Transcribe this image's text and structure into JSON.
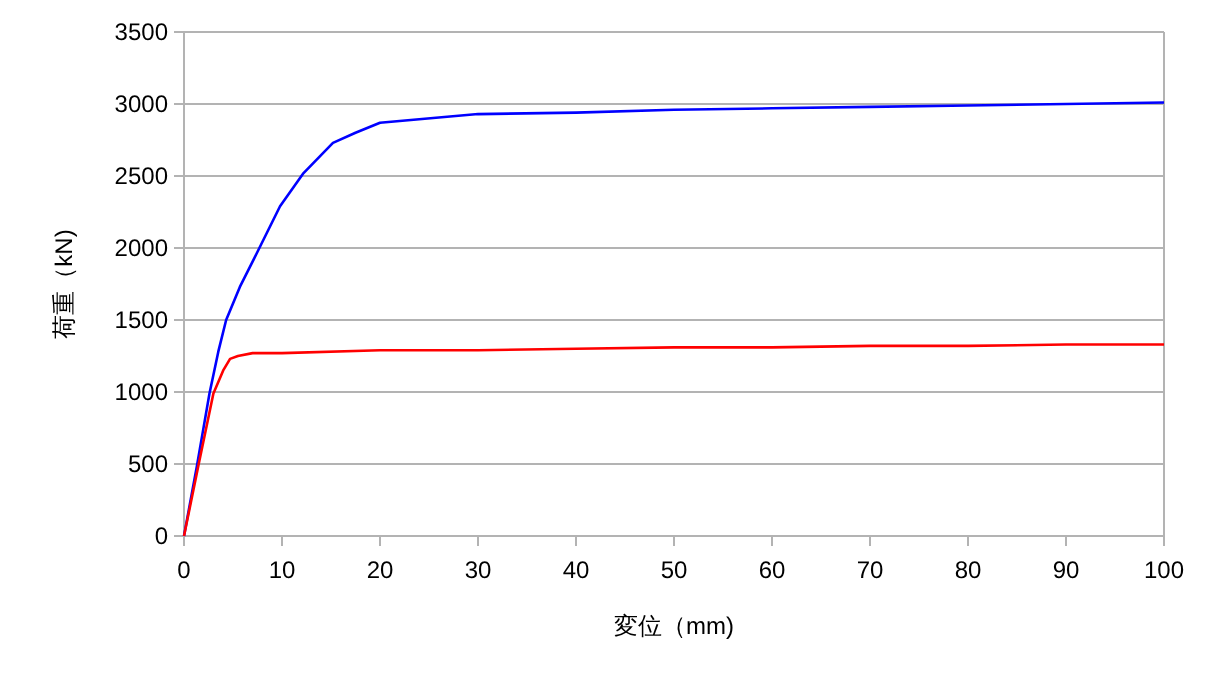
{
  "chart_data": {
    "type": "line",
    "xlabel": "変位（mm)",
    "ylabel": "荷重（kN)",
    "xlim": [
      0,
      100
    ],
    "ylim": [
      0,
      3500
    ],
    "xticks": [
      0,
      10,
      20,
      30,
      40,
      50,
      60,
      70,
      80,
      90,
      100
    ],
    "yticks": [
      0,
      500,
      1000,
      1500,
      2000,
      2500,
      3000,
      3500
    ],
    "grid": "y",
    "marker": "none",
    "line_style": "solid",
    "series": [
      {
        "color": "#0000ff",
        "x": [
          0,
          1.3,
          2.6,
          3.5,
          4.3,
          5.7,
          7.4,
          9.8,
          12.2,
          15.2,
          17.5,
          20,
          30,
          40,
          50,
          60,
          70,
          80,
          90,
          100
        ],
        "values": [
          0,
          480,
          990,
          1280,
          1500,
          1730,
          1960,
          2290,
          2520,
          2730,
          2800,
          2870,
          2930,
          2940,
          2960,
          2970,
          2980,
          2990,
          3000,
          3010
        ]
      },
      {
        "color": "#ff0000",
        "x": [
          0,
          1.5,
          3,
          4,
          4.7,
          5.5,
          7,
          10,
          20,
          30,
          40,
          50,
          60,
          70,
          80,
          90,
          100
        ],
        "values": [
          0,
          500,
          990,
          1150,
          1230,
          1250,
          1270,
          1270,
          1290,
          1290,
          1300,
          1310,
          1310,
          1320,
          1320,
          1330,
          1330
        ]
      }
    ]
  }
}
